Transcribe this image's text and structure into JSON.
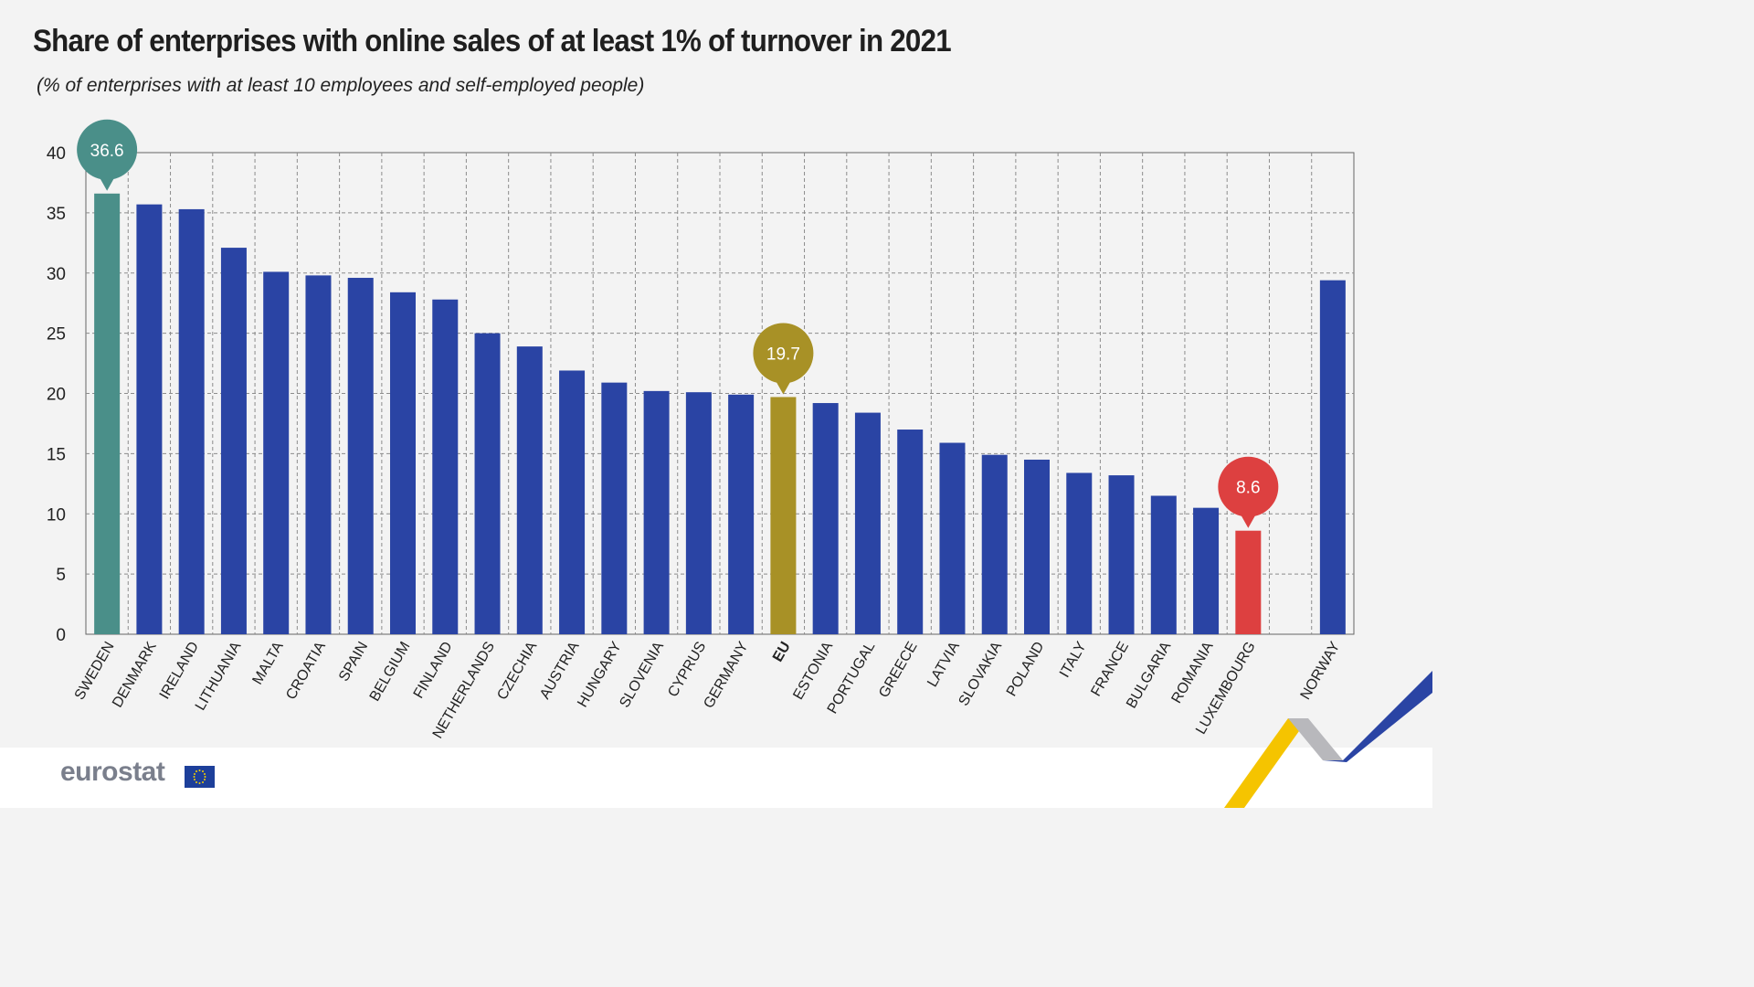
{
  "header": {
    "title": "Share of enterprises with online sales of at least 1% of turnover in 2021",
    "subtitle": "(% of enterprises with at least 10 employees and self-employed people)"
  },
  "branding": {
    "logo_text": "eurostat"
  },
  "colors": {
    "bar_default": "#2a44a4",
    "bar_max": "#4a8f89",
    "bar_eu": "#a89126",
    "bar_min": "#dd4040",
    "grid": "#8c8c8c"
  },
  "chart_data": {
    "type": "bar",
    "title": "Share of enterprises with online sales of at least 1% of turnover in 2021",
    "xlabel": "",
    "ylabel": "",
    "ylim": [
      0,
      40
    ],
    "yticks": [
      0,
      5,
      10,
      15,
      20,
      25,
      30,
      35,
      40
    ],
    "grid": true,
    "categories": [
      "SWEDEN",
      "DENMARK",
      "IRELAND",
      "LITHUANIA",
      "MALTA",
      "CROATIA",
      "SPAIN",
      "BELGIUM",
      "FINLAND",
      "NETHERLANDS",
      "CZECHIA",
      "AUSTRIA",
      "HUNGARY",
      "SLOVENIA",
      "CYPRUS",
      "GERMANY",
      "EU",
      "ESTONIA",
      "PORTUGAL",
      "GREECE",
      "LATVIA",
      "SLOVAKIA",
      "POLAND",
      "ITALY",
      "FRANCE",
      "BULGARIA",
      "ROMANIA",
      "LUXEMBOURG",
      "",
      "NORWAY"
    ],
    "values": [
      36.6,
      35.7,
      35.3,
      32.1,
      30.1,
      29.8,
      29.6,
      28.4,
      27.8,
      25.0,
      23.9,
      21.9,
      20.9,
      20.2,
      20.1,
      19.9,
      19.7,
      19.2,
      18.4,
      17.0,
      15.9,
      14.9,
      14.5,
      13.4,
      13.2,
      11.5,
      10.5,
      8.6,
      null,
      29.4
    ],
    "highlights": [
      {
        "category": "SWEDEN",
        "label": "36.6",
        "role": "max"
      },
      {
        "category": "EU",
        "label": "19.7",
        "role": "eu"
      },
      {
        "category": "LUXEMBOURG",
        "label": "8.6",
        "role": "min"
      }
    ]
  }
}
